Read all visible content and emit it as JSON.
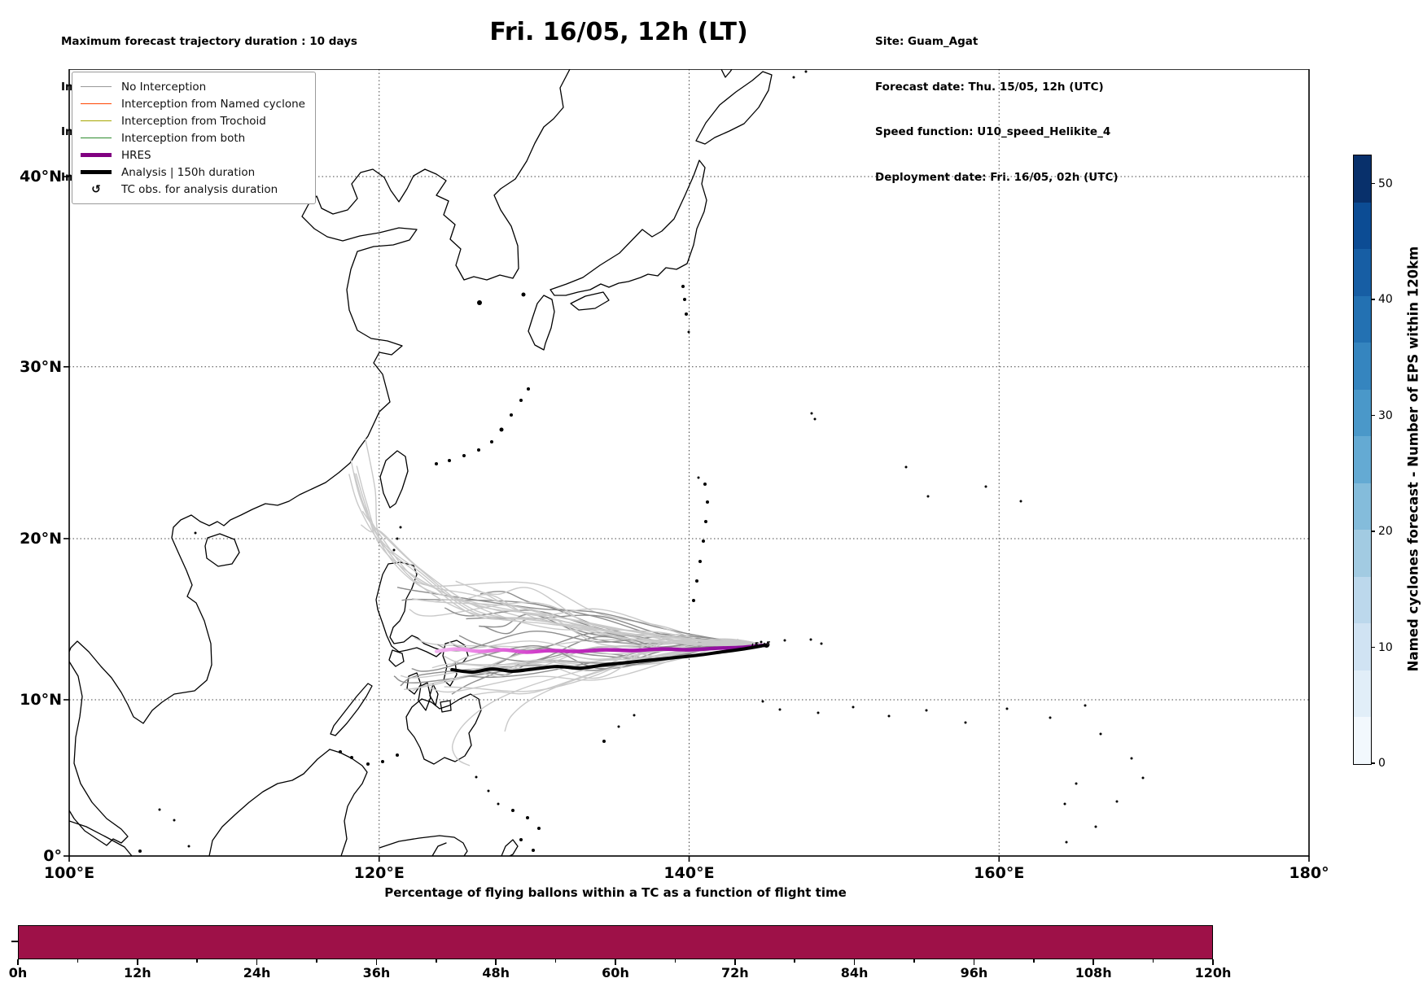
{
  "header": {
    "left_lines": [
      "Maximum forecast trajectory duration : 10 days",
      "Intercept distance: 300km",
      "Intercept RW2 (EPS):  30km/h2",
      "Intercept RW2 (HRES): 30km/h2"
    ],
    "title": "Fri. 16/05, 12h (LT)",
    "right_lines": [
      "Site: Guam_Agat",
      "Forecast date: Thu. 15/05, 12h (UTC)",
      "Speed function: U10_speed_Helikite_4",
      "Deployment date: Fri. 16/05, 02h (UTC)"
    ]
  },
  "map": {
    "legend": {
      "items": [
        {
          "label": "No Interception",
          "swatch": "line",
          "color": "#999999"
        },
        {
          "label": "Interception from Named cyclone",
          "swatch": "line",
          "color": "#ff4500"
        },
        {
          "label": "Interception from Trochoid",
          "swatch": "line",
          "color": "#a6a600"
        },
        {
          "label": "Interception from both",
          "swatch": "line",
          "color": "#2e8b2e"
        },
        {
          "label": "HRES",
          "swatch": "thickline",
          "color": "#800080"
        },
        {
          "label": "Analysis | 150h duration",
          "swatch": "thickline",
          "color": "#000000"
        },
        {
          "label": "TC obs. for analysis duration",
          "swatch": "marker",
          "glyph": "↺",
          "color": "#000000"
        }
      ]
    },
    "x_ticks": [
      {
        "label": "100°E",
        "lon": 100
      },
      {
        "label": "120°E",
        "lon": 120
      },
      {
        "label": "140°E",
        "lon": 140
      },
      {
        "label": "160°E",
        "lon": 160
      },
      {
        "label": "180°",
        "lon": 180
      }
    ],
    "y_ticks": [
      {
        "label": "0°",
        "lat": 0
      },
      {
        "label": "10°N",
        "lat": 10
      },
      {
        "label": "20°N",
        "lat": 20
      },
      {
        "label": "30°N",
        "lat": 30
      },
      {
        "label": "40°N",
        "lat": 40
      }
    ],
    "colorbar": {
      "label": "Named cyclones forecast - Number of EPS within 120km",
      "ticks": [
        0,
        10,
        20,
        30,
        40,
        50
      ],
      "vmax": 52.5,
      "colors_bottom_to_top": [
        "#f2f8fd",
        "#e1eef8",
        "#d0e3f3",
        "#bcd8ec",
        "#a2cbe2",
        "#84bcdb",
        "#64aad3",
        "#4a98c9",
        "#3585bf",
        "#2371b2",
        "#175ea4",
        "#0c4c94",
        "#08306b"
      ]
    }
  },
  "bottom_chart": {
    "title": "Percentage of flying ballons within a TC as a function of flight time",
    "x_tick_labels": [
      "0h",
      "12h",
      "24h",
      "36h",
      "48h",
      "60h",
      "72h",
      "84h",
      "96h",
      "108h",
      "120h"
    ],
    "bar_color": "#9e1148"
  },
  "chart_data": [
    {
      "type": "line",
      "title": "Fri. 16/05, 12h (LT)",
      "description": "Map of forecast balloon/TC-intercept trajectories over the Western Pacific. ~50 EPS ensemble trajectories (gray, all 'No Interception') originate near Guam (145°E, 13.4°N) and fan westward toward the Philippines (121–127°E, 6–22°N).",
      "map_extent": {
        "lon": [
          100,
          180
        ],
        "lat": [
          0,
          45
        ],
        "projection": "Mercator"
      },
      "x_tick_labels": [
        "100°E",
        "120°E",
        "140°E",
        "160°E",
        "180°"
      ],
      "y_tick_labels": [
        "0°",
        "10°N",
        "20°N",
        "30°N",
        "40°N"
      ],
      "grid": true,
      "legend_position": "upper left",
      "eps_trajectories": {
        "count": 48,
        "color_shades": [
          "#c9c9c9",
          "#8d8d8d"
        ],
        "origin_lonlat": [
          145.0,
          13.45
        ],
        "western_end_lon_range": [
          121,
          126.5
        ],
        "end_lat_range": [
          6,
          22
        ]
      },
      "hres_track": {
        "color_gradient": [
          "#f0b3ee",
          "#8b0f9b"
        ],
        "path_lonlat": [
          [
            123.7,
            13.05
          ],
          [
            125.0,
            13.2
          ],
          [
            126.5,
            13.05
          ],
          [
            128.0,
            13.15
          ],
          [
            129.5,
            13.0
          ],
          [
            131.0,
            13.1
          ],
          [
            132.8,
            13.05
          ],
          [
            134.6,
            13.15
          ],
          [
            136.4,
            13.1
          ],
          [
            138.2,
            13.2
          ],
          [
            140.0,
            13.15
          ],
          [
            141.8,
            13.25
          ],
          [
            143.4,
            13.3
          ],
          [
            145.0,
            13.45
          ]
        ]
      },
      "analysis_track": {
        "color": "#000000",
        "duration": "150h",
        "path_lonlat": [
          [
            124.7,
            11.9
          ],
          [
            126.0,
            11.75
          ],
          [
            127.3,
            11.95
          ],
          [
            128.6,
            11.8
          ],
          [
            130.0,
            11.95
          ],
          [
            131.5,
            12.1
          ],
          [
            133.0,
            12.0
          ],
          [
            134.5,
            12.2
          ],
          [
            136.0,
            12.35
          ],
          [
            137.5,
            12.5
          ],
          [
            139.0,
            12.65
          ],
          [
            140.5,
            12.8
          ],
          [
            142.0,
            13.0
          ],
          [
            143.5,
            13.2
          ],
          [
            145.0,
            13.45
          ]
        ]
      },
      "tc_obs_markers_lonlat": [
        [
          145.0,
          13.45
        ],
        [
          144.25,
          13.4
        ]
      ],
      "colorbar": {
        "label": "Named cyclones forecast - Number of EPS within 120km",
        "ticks": [
          0,
          10,
          20,
          30,
          40,
          50
        ],
        "vmax": 52.5,
        "colormap": "Blues"
      }
    },
    {
      "type": "bar",
      "title": "Percentage of flying ballons within a TC as a function of flight time",
      "x_range_hours": [
        0,
        120
      ],
      "x_tick_labels": [
        "0h",
        "12h",
        "24h",
        "36h",
        "48h",
        "60h",
        "72h",
        "84h",
        "96h",
        "108h",
        "120h"
      ],
      "values": [
        {
          "from_h": 0,
          "to_h": 120,
          "percent": 100
        }
      ],
      "bar_color": "#9e1148"
    }
  ]
}
